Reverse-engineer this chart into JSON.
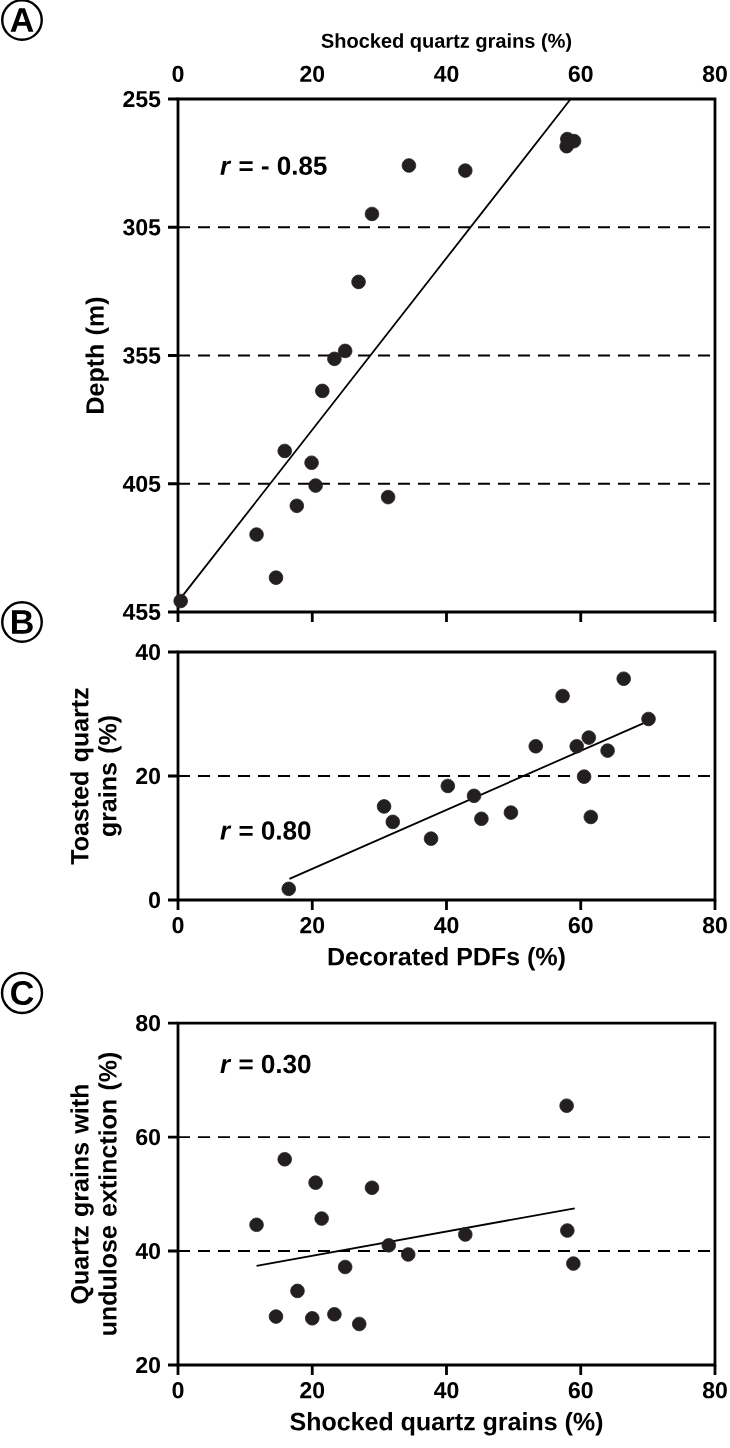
{
  "chart_data": [
    {
      "type": "scatter",
      "xlabel": "Shocked quartz grains (%)",
      "ylabel": "Depth (m)",
      "xlim": [
        0,
        80
      ],
      "xticks": [
        0,
        20,
        40,
        60,
        80
      ],
      "ylim": [
        455,
        255
      ],
      "yticks": [
        255,
        305,
        355,
        405,
        455
      ],
      "grid": "y",
      "annotations": [
        "A",
        "*r* = - 0.85"
      ],
      "series": [
        {
          "marker": "circle",
          "color": "#231f20",
          "x": [
            58.0,
            59.0,
            57.9,
            34.4,
            42.8,
            28.9,
            26.9,
            24.9,
            23.3,
            21.5,
            15.9,
            19.9,
            20.5,
            31.3,
            17.7,
            11.7,
            14.6,
            0.4
          ],
          "values": [
            270.6,
            271.4,
            273.4,
            280.9,
            282.9,
            299.8,
            326.3,
            353.2,
            356.3,
            368.8,
            392.2,
            396.8,
            405.7,
            410.2,
            413.6,
            424.8,
            441.6,
            450.7
          ]
        },
        {
          "type": "line",
          "marker": "none",
          "color": "#000000",
          "x": [
            0.5,
            58.5
          ],
          "values": [
            449.3,
            255
          ]
        }
      ]
    },
    {
      "type": "scatter",
      "xlabel": "Decorated PDFs (%)",
      "ylabel": "Toasted quartz grains (%)",
      "xlim": [
        0,
        80
      ],
      "xticks": [
        0,
        20,
        40,
        60,
        80
      ],
      "ylim": [
        0,
        40
      ],
      "yticks": [
        0,
        20,
        40
      ],
      "grid": "y",
      "annotations": [
        "B",
        "*r* = 0.80"
      ],
      "series": [
        {
          "marker": "circle",
          "color": "#231f20",
          "x": [
            66.4,
            57.3,
            70.1,
            61.2,
            53.3,
            59.4,
            64.0,
            60.5,
            40.2,
            44.1,
            30.7,
            49.6,
            32.0,
            45.2,
            61.5,
            37.7,
            16.5
          ],
          "values": [
            35.7,
            32.9,
            29.2,
            26.2,
            24.8,
            24.8,
            24.1,
            19.9,
            18.4,
            16.8,
            15.1,
            14.1,
            12.6,
            13.1,
            13.4,
            9.9,
            1.8
          ]
        },
        {
          "type": "line",
          "marker": "none",
          "color": "#000000",
          "x": [
            16.6,
            69.3
          ],
          "values": [
            3.4,
            28.5
          ]
        }
      ]
    },
    {
      "type": "scatter",
      "xlabel": "Shocked quartz grains (%)",
      "ylabel": "Quartz grains with undulose extinction (%)",
      "xlim": [
        0,
        80
      ],
      "xticks": [
        0,
        20,
        40,
        60,
        80
      ],
      "ylim": [
        20,
        80
      ],
      "yticks": [
        20,
        40,
        60,
        80
      ],
      "grid": "y",
      "annotations": [
        "C",
        "*r* = 0.30"
      ],
      "series": [
        {
          "marker": "circle",
          "color": "#231f20",
          "x": [
            57.9,
            15.9,
            20.5,
            28.9,
            11.7,
            21.4,
            42.8,
            58.0,
            31.4,
            34.3,
            24.9,
            58.9,
            17.8,
            14.6,
            20.0,
            23.3,
            27.0
          ],
          "values": [
            65.5,
            56.1,
            52.0,
            51.1,
            44.6,
            45.7,
            42.9,
            43.6,
            41.0,
            39.4,
            37.2,
            37.8,
            33.0,
            28.5,
            28.2,
            28.9,
            27.2
          ]
        },
        {
          "type": "line",
          "marker": "none",
          "color": "#000000",
          "x": [
            11.7,
            59.1
          ],
          "values": [
            37.4,
            47.5
          ]
        }
      ]
    }
  ]
}
